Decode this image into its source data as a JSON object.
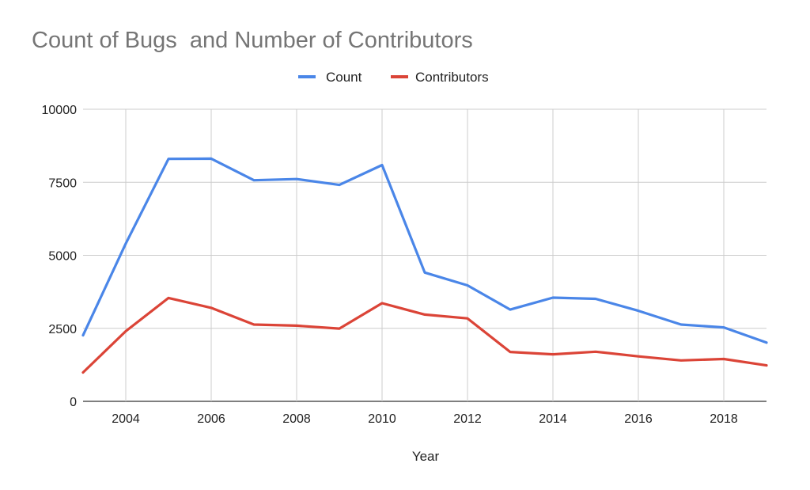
{
  "chart_data": {
    "type": "line",
    "title": "Count of Bugs  and Number of Contributors",
    "xlabel": "Year",
    "ylabel": "",
    "x": [
      2003,
      2004,
      2005,
      2006,
      2007,
      2008,
      2009,
      2010,
      2011,
      2012,
      2013,
      2014,
      2015,
      2016,
      2017,
      2018,
      2019
    ],
    "xlim": [
      2003,
      2019
    ],
    "ylim": [
      0,
      10000
    ],
    "x_ticks": [
      "2004",
      "2006",
      "2008",
      "2010",
      "2012",
      "2014",
      "2016",
      "2018"
    ],
    "y_ticks": [
      "0",
      "2500",
      "5000",
      "7500",
      "10000"
    ],
    "grid": true,
    "legend_position": "top",
    "series": [
      {
        "name": "Count",
        "color": "#4a86e8",
        "values": [
          2260,
          5400,
          8300,
          8310,
          7570,
          7610,
          7410,
          8090,
          4410,
          3970,
          3140,
          3550,
          3510,
          3100,
          2630,
          2530,
          2010
        ]
      },
      {
        "name": "Contributors",
        "color": "#db4437",
        "values": [
          990,
          2400,
          3540,
          3200,
          2630,
          2590,
          2490,
          3360,
          2970,
          2840,
          1690,
          1610,
          1700,
          1540,
          1400,
          1450,
          1230
        ]
      }
    ]
  }
}
